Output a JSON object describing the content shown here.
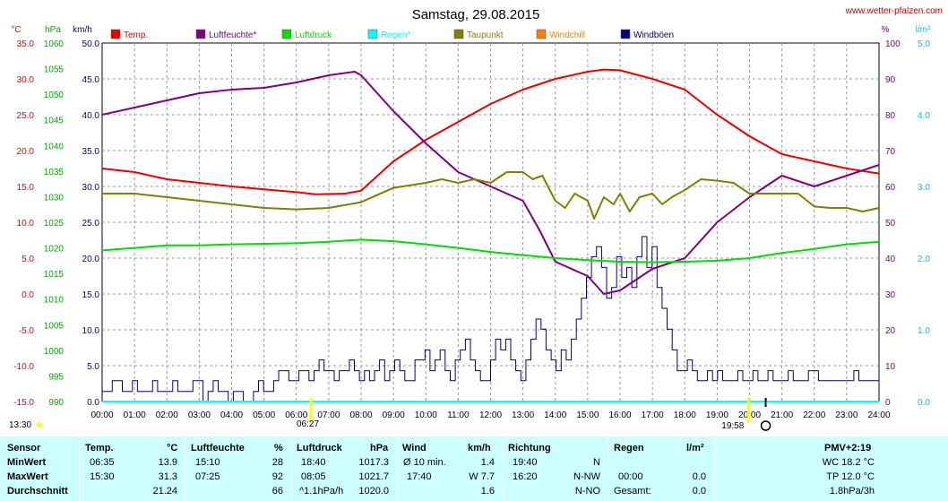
{
  "site": "www.wetter-pfalzen.com",
  "chart_data": {
    "type": "line",
    "title": "Samstag, 29.08.2015",
    "legend": [
      {
        "name": "Temp.",
        "color": "#ee0000"
      },
      {
        "name": "Luftfeuchte*",
        "color": "#800080"
      },
      {
        "name": "Luftdruck",
        "color": "#00dd00"
      },
      {
        "name": "Regen*",
        "color": "#00ffff"
      },
      {
        "name": "Taupunkt",
        "color": "#808000"
      },
      {
        "name": "Windchill",
        "color": "#ff8000"
      },
      {
        "name": "Windböen",
        "color": "#000080"
      }
    ],
    "axis_units": {
      "temp": "°C",
      "pressure": "hPa",
      "wind": "km/h",
      "humidity": "%",
      "rain": "l/m²"
    },
    "y_axes": {
      "temp": {
        "min": -15,
        "max": 35,
        "ticks": [
          "35.0",
          "30.0",
          "25.0",
          "20.0",
          "15.0",
          "10.0",
          "5.0",
          "0.0",
          "-5.0",
          "-10.0",
          "-15.0"
        ]
      },
      "pressure": {
        "min": 990,
        "max": 1060,
        "ticks": [
          "1060",
          "1055",
          "1050",
          "1045",
          "1040",
          "1035",
          "1030",
          "1025",
          "1020",
          "1015",
          "1010",
          "1005",
          "1000",
          "995",
          "990"
        ]
      },
      "wind": {
        "min": 0,
        "max": 50,
        "ticks": [
          "50.0",
          "45.0",
          "40.0",
          "35.0",
          "30.0",
          "25.0",
          "20.0",
          "15.0",
          "10.0",
          "5.0",
          "0.0"
        ]
      },
      "humidity": {
        "min": 0,
        "max": 100,
        "ticks": [
          "100",
          "90",
          "80",
          "70",
          "60",
          "50",
          "40",
          "30",
          "20",
          "10",
          "0"
        ]
      },
      "rain": {
        "min": 0,
        "max": 5,
        "ticks": [
          "5.0",
          "4.0",
          "3.0",
          "2.0",
          "1.0",
          "0.0"
        ]
      }
    },
    "x_ticks": [
      "00:00",
      "01:00",
      "02:00",
      "03:00",
      "04:00",
      "05:00",
      "06:00",
      "07:00",
      "08:00",
      "09:00",
      "10:00",
      "11:00",
      "12:00",
      "13:00",
      "14:00",
      "15:00",
      "16:00",
      "17:00",
      "18:00",
      "19:00",
      "20:00",
      "21:00",
      "22:00",
      "23:00",
      "24:00"
    ],
    "x_range_hours": [
      0,
      24
    ],
    "grid": true,
    "sun": {
      "sunrise": "06:27",
      "sunset": "19:58",
      "moon_label": "13:30"
    },
    "series": [
      {
        "name": "Temp.",
        "axis": "temp",
        "color": "#ee0000",
        "x": [
          0,
          1,
          2,
          3,
          4,
          5,
          6,
          6.6,
          7.5,
          8,
          9,
          10,
          11,
          12,
          13,
          14,
          15,
          15.5,
          16,
          17,
          18,
          19,
          20,
          21,
          22,
          23,
          24
        ],
        "y": [
          17.5,
          17,
          16,
          15.5,
          15,
          14.6,
          14.2,
          13.9,
          14,
          14.4,
          18.5,
          21.5,
          24,
          26.5,
          28.5,
          30,
          31,
          31.3,
          31.2,
          30,
          28.5,
          25,
          22,
          19.5,
          18.5,
          17.5,
          16.8
        ]
      },
      {
        "name": "Luftfeuchte*",
        "axis": "humidity",
        "color": "#800080",
        "x": [
          0,
          1,
          2,
          3,
          4,
          5,
          6,
          7,
          7.8,
          8,
          9,
          10,
          11,
          12,
          13,
          13.5,
          14,
          15,
          15.5,
          16,
          17,
          18,
          19,
          20,
          21,
          22,
          23,
          24
        ],
        "y": [
          80,
          82,
          84,
          86,
          87,
          87.5,
          89,
          91,
          92,
          91,
          81,
          72,
          64,
          60,
          56,
          48,
          39,
          35,
          30,
          31,
          37,
          40,
          50,
          57,
          63,
          60,
          63,
          66
        ]
      },
      {
        "name": "Luftdruck",
        "axis": "pressure",
        "color": "#00dd00",
        "x": [
          0,
          1,
          2,
          3,
          4,
          5,
          6,
          7,
          8,
          9,
          10,
          11,
          12,
          13,
          14,
          15,
          16,
          17,
          18,
          19,
          20,
          21,
          22,
          23,
          24
        ],
        "y": [
          1019.5,
          1020,
          1020.5,
          1020.5,
          1020.7,
          1020.8,
          1020.9,
          1021.2,
          1021.6,
          1021.3,
          1020.7,
          1020,
          1019.2,
          1018.6,
          1018,
          1017.6,
          1017.3,
          1017.2,
          1017.3,
          1017.5,
          1018,
          1019,
          1019.8,
          1020.7,
          1021.2
        ]
      },
      {
        "name": "Taupunkt",
        "axis": "temp",
        "color": "#808000",
        "x": [
          0,
          1,
          2,
          3,
          4,
          5,
          6,
          7,
          8,
          9,
          10,
          10.5,
          11,
          11.5,
          12,
          12.5,
          13,
          13.3,
          13.6,
          14,
          14.3,
          14.6,
          15,
          15.2,
          15.5,
          15.8,
          16,
          16.3,
          16.6,
          17,
          17.3,
          17.6,
          18,
          18.5,
          19,
          19.5,
          20,
          20.5,
          21,
          21.5,
          22,
          22.5,
          23,
          23.5,
          24
        ],
        "y": [
          14,
          14,
          13.5,
          13,
          12.5,
          12,
          11.8,
          12,
          12.8,
          14.8,
          15.5,
          16,
          15.5,
          16,
          15.5,
          17,
          17,
          16,
          16.5,
          13,
          12,
          14,
          13,
          10.5,
          13.5,
          12.5,
          14,
          11.5,
          13.5,
          14,
          12.5,
          13.5,
          14.5,
          16,
          15.8,
          15.5,
          14,
          14,
          14,
          14,
          12.2,
          12,
          12,
          11.5,
          12
        ]
      },
      {
        "name": "Windchill",
        "axis": "temp",
        "color": "#ff8000",
        "x": [],
        "y": []
      },
      {
        "name": "Regen*",
        "axis": "rain",
        "color": "#00ffff",
        "x": [
          0,
          24
        ],
        "y": [
          0,
          0
        ]
      }
    ],
    "wind_gusts": {
      "name": "Windböen",
      "axis": "wind",
      "color": "#000080",
      "levels": [
        1.4,
        1.4,
        2.9,
        2.9,
        1.4,
        1.4,
        2.9,
        1.4,
        1.4,
        1.4,
        2.9,
        1.4,
        1.4,
        1.4,
        2.9,
        1.4,
        1.4,
        1.4,
        2.9,
        2.9,
        0,
        1.4,
        2.9,
        1.4,
        1.4,
        0,
        1.4,
        1.4,
        0,
        0,
        1.4,
        2.9,
        1.4,
        1.4,
        2.9,
        4.3,
        4.3,
        2.9,
        2.9,
        4.3,
        4.3,
        2.9,
        4.3,
        5.8,
        4.3,
        4.3,
        2.9,
        4.3,
        4.3,
        5.8,
        4.3,
        2.9,
        4.3,
        2.9,
        4.3,
        5.8,
        2.9,
        4.3,
        5.8,
        4.3,
        2.9,
        2.9,
        5.8,
        5.8,
        7.2,
        4.3,
        5.8,
        7.2,
        4.3,
        2.9,
        5.8,
        7.2,
        8.7,
        5.8,
        4.3,
        2.9,
        2.9,
        5.8,
        8.7,
        7.2,
        8.7,
        5.8,
        4.3,
        2.9,
        5.8,
        8.7,
        11.5,
        10.1,
        7.2,
        5.8,
        4.3,
        7.2,
        5.8,
        8.7,
        11.5,
        14.4,
        17.3,
        20.2,
        21.6,
        18.7,
        14.4,
        15.9,
        20.2,
        17.3,
        18.7,
        15.9,
        20.2,
        23.0,
        18.7,
        21.6,
        15.9,
        13.0,
        10.1,
        7.2,
        4.3,
        4.3,
        5.8,
        4.3,
        2.9,
        2.9,
        4.3,
        2.9,
        4.3,
        2.9,
        2.9,
        2.9,
        4.3,
        2.9,
        2.9,
        4.3,
        2.9,
        2.9,
        4.3,
        2.9,
        2.9,
        2.9,
        4.3,
        2.9,
        2.9,
        2.9,
        4.3,
        4.3,
        2.9,
        2.9,
        2.9,
        2.9,
        2.9,
        2.9,
        2.9,
        4.3,
        2.9,
        2.9,
        2.9,
        2.9
      ]
    }
  },
  "table": {
    "headers": {
      "sensor": "Sensor",
      "temp": "Temp.",
      "temp_unit": "°C",
      "hum": "Luftfeuchte",
      "hum_unit": "%",
      "press": "Luftdruck",
      "press_unit": "hPa",
      "wind": "Wind",
      "wind_unit": "km/h",
      "dir": "Richtung",
      "rain": "Regen",
      "rain_unit": "l/m²",
      "pmv": "PMV+2:19"
    },
    "rows": [
      {
        "label": "MinWert",
        "temp_time": "06:35",
        "temp": "13.9",
        "hum_time": "15:10",
        "hum": "28",
        "press_time": "18:40",
        "press": "1017.3",
        "wind_time": "Ø 10 min.",
        "wind": "1.4",
        "dir_time": "19:40",
        "dir": "N",
        "rain_time": "",
        "rain": "",
        "pmv": "WC 18.2 °C"
      },
      {
        "label": "MaxWert",
        "temp_time": "15:30",
        "temp": "31.3",
        "hum_time": "07:25",
        "hum": "92",
        "press_time": "08:05",
        "press": "1021.7",
        "wind_time": "17:40",
        "wind": "W 7.7",
        "dir_time": "16:20",
        "dir": "N-NW",
        "rain_time": "00:00",
        "rain": "0.0",
        "pmv": "TP 12.0 °C"
      },
      {
        "label": "Durchschnitt",
        "temp_time": "",
        "temp": "21.24",
        "hum_time": "",
        "hum": "66",
        "press_time": "^1.1hPa/h",
        "press": "1020.0",
        "wind_time": "",
        "wind": "1.6",
        "dir_time": "",
        "dir": "N-NO",
        "rain_time": "Gesamt:",
        "rain": "0.0",
        "pmv": "1.8hPa/3h"
      }
    ]
  }
}
